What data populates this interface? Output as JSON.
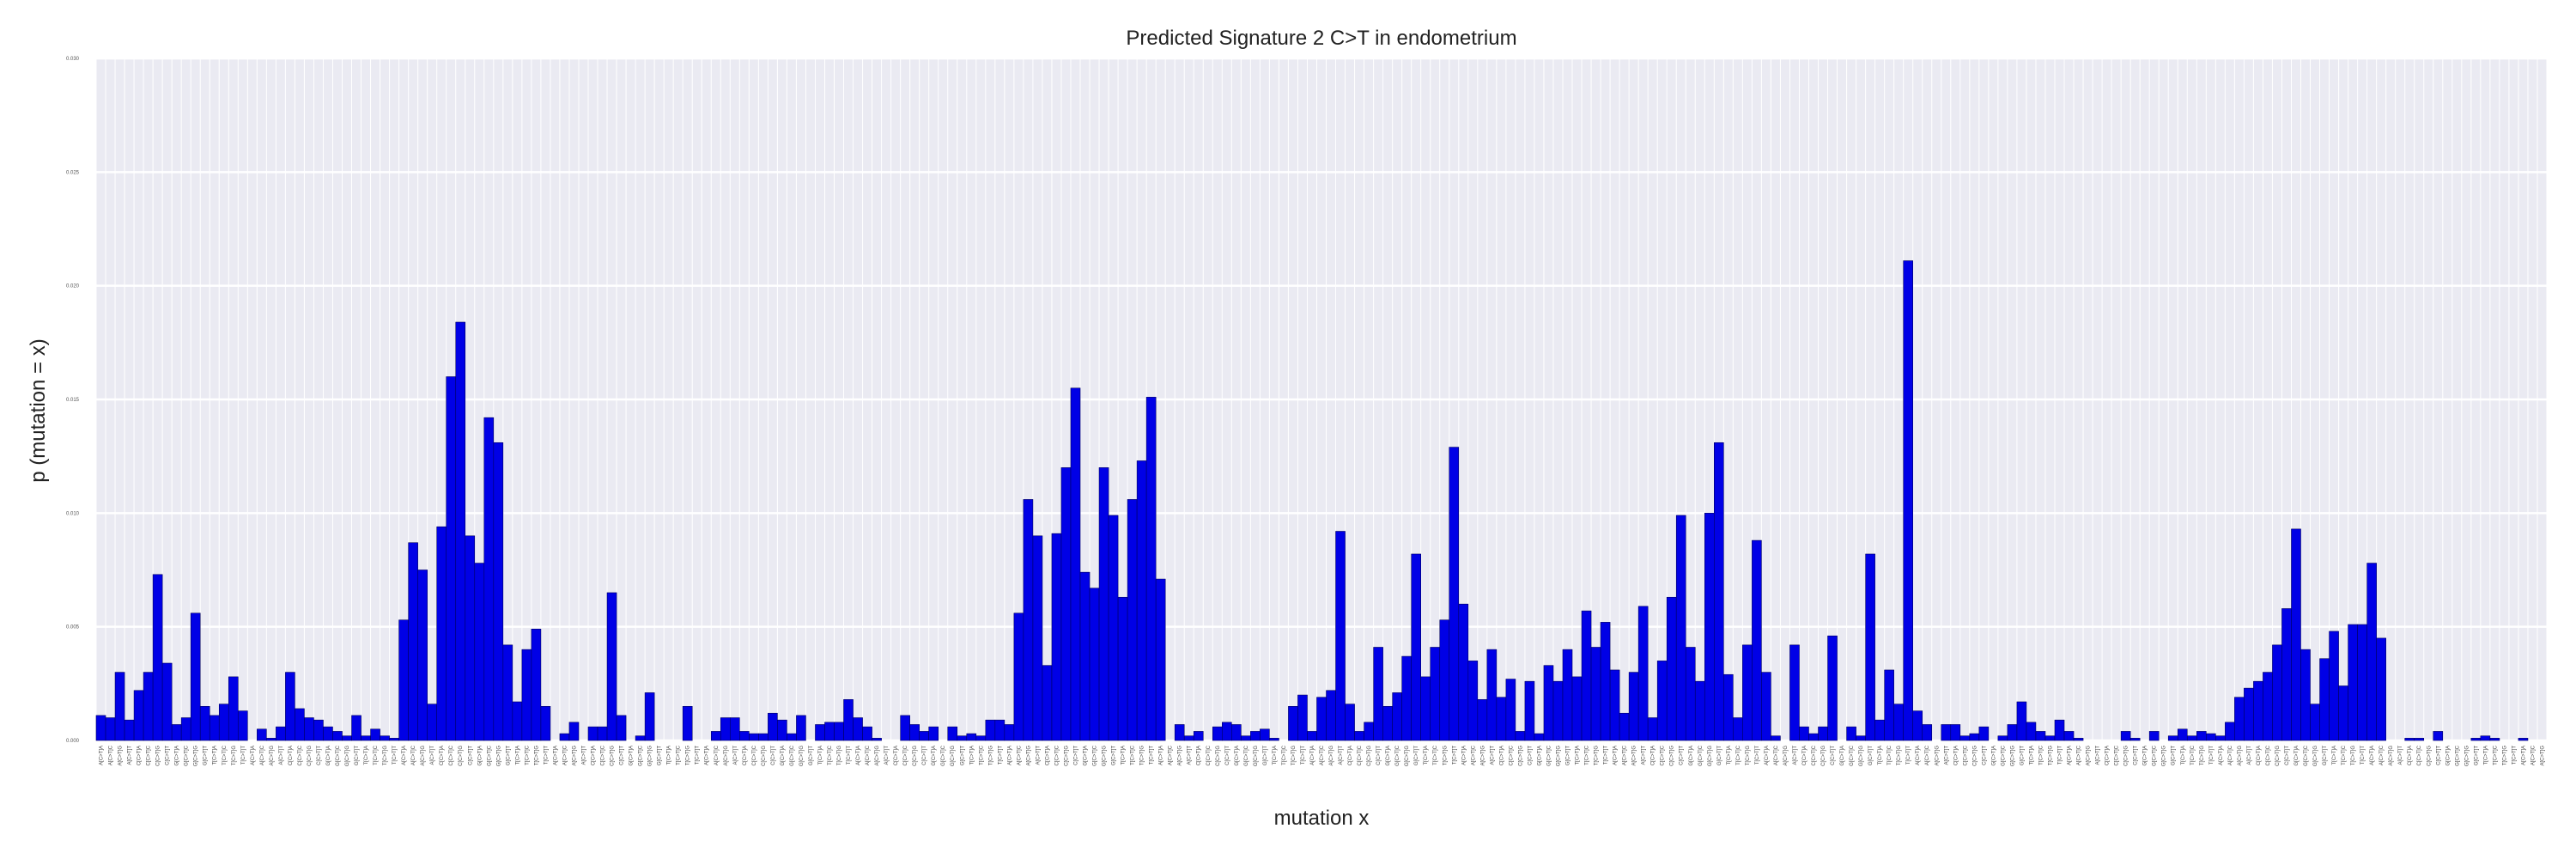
{
  "chart_data": {
    "type": "bar",
    "title": "Predicted Signature 2 C>T in endometrium",
    "xlabel": "mutation x",
    "ylabel": "p (mutation = x)",
    "ylim": [
      0,
      0.03
    ],
    "yticks": [
      "0.000",
      "0.005",
      "0.010",
      "0.015",
      "0.020",
      "0.025",
      "0.030"
    ],
    "grid": true,
    "bar_color": "#0000e6",
    "background_color": "#eaeaf2",
    "contexts": [
      "A",
      "C",
      "G",
      "T"
    ],
    "values": [
      0.0011,
      0.001,
      0.003,
      0.0009,
      0.0022,
      0.003,
      0.0073,
      0.0034,
      0.0007,
      0.001,
      0.0056,
      0.0015,
      0.0011,
      0.0016,
      0.0028,
      0.0013,
      0.0,
      0.0005,
      0.0001,
      0.0006,
      0.003,
      0.0014,
      0.001,
      0.0009,
      0.0006,
      0.0004,
      0.0002,
      0.0011,
      0.0002,
      0.0005,
      0.0002,
      0.0001,
      0.0053,
      0.0087,
      0.0075,
      0.0016,
      0.0094,
      0.016,
      0.0184,
      0.009,
      0.0078,
      0.0142,
      0.0131,
      0.0042,
      0.0017,
      0.004,
      0.0049,
      0.0015,
      0.0,
      0.0003,
      0.0008,
      0.0,
      0.0006,
      0.0006,
      0.0065,
      0.0011,
      0.0,
      0.0002,
      0.0021,
      0.0,
      0.0,
      0.0,
      0.0015,
      0.0,
      0.0,
      0.0004,
      0.001,
      0.001,
      0.0004,
      0.0003,
      0.0003,
      0.0012,
      0.0009,
      0.0003,
      0.0011,
      0.0,
      0.0007,
      0.0008,
      0.0008,
      0.0018,
      0.001,
      0.0006,
      0.0001,
      0.0,
      0.0,
      0.0011,
      0.0007,
      0.0004,
      0.0006,
      0.0,
      0.0006,
      0.0002,
      0.0003,
      0.0002,
      0.0009,
      0.0009,
      0.0007,
      0.0056,
      0.0106,
      0.009,
      0.0033,
      0.0091,
      0.012,
      0.0155,
      0.0074,
      0.0067,
      0.012,
      0.0099,
      0.0063,
      0.0106,
      0.0123,
      0.0151,
      0.0071,
      0.0,
      0.0007,
      0.0002,
      0.0004,
      0.0,
      0.0006,
      0.0008,
      0.0007,
      0.0002,
      0.0004,
      0.0005,
      0.0001,
      0.0,
      0.0015,
      0.002,
      0.0004,
      0.0019,
      0.0022,
      0.0092,
      0.0016,
      0.0004,
      0.0008,
      0.0041,
      0.0015,
      0.0021,
      0.0037,
      0.0082,
      0.0028,
      0.0041,
      0.0053,
      0.0129,
      0.006,
      0.0035,
      0.0018,
      0.004,
      0.0019,
      0.0027,
      0.0004,
      0.0026,
      0.0003,
      0.0033,
      0.0026,
      0.004,
      0.0028,
      0.0057,
      0.0041,
      0.0052,
      0.0031,
      0.0012,
      0.003,
      0.0059,
      0.001,
      0.0035,
      0.0063,
      0.0099,
      0.0041,
      0.0026,
      0.01,
      0.0131,
      0.0029,
      0.001,
      0.0042,
      0.0088,
      0.003,
      0.0002,
      0.0,
      0.0042,
      0.0006,
      0.0003,
      0.0006,
      0.0046,
      0.0,
      0.0006,
      0.0002,
      0.0082,
      0.0009,
      0.0031,
      0.0016,
      0.0211,
      0.0013,
      0.0007,
      0.0,
      0.0007,
      0.0007,
      0.0002,
      0.0003,
      0.0006,
      0.0,
      0.0002,
      0.0007,
      0.0017,
      0.0008,
      0.0004,
      0.0002,
      0.0009,
      0.0004,
      0.0001,
      0.0,
      0.0,
      0.0,
      0.0,
      0.0004,
      0.0001,
      0.0,
      0.0004,
      0.0,
      0.0002,
      0.0005,
      0.0002,
      0.0004,
      0.0003,
      0.0002,
      0.0008,
      0.0019,
      0.0023,
      0.0026,
      0.003,
      0.0042,
      0.0058,
      0.0093,
      0.004,
      0.0016,
      0.0036,
      0.0048,
      0.0024,
      0.0051,
      0.0051,
      0.0078,
      0.0045,
      0.0,
      0.0,
      0.0001,
      0.0001,
      0.0,
      0.0004,
      0.0,
      0.0,
      0.0,
      0.0001,
      0.0002,
      0.0001,
      0.0,
      0.0,
      0.0001,
      0.0,
      0.0
    ]
  }
}
